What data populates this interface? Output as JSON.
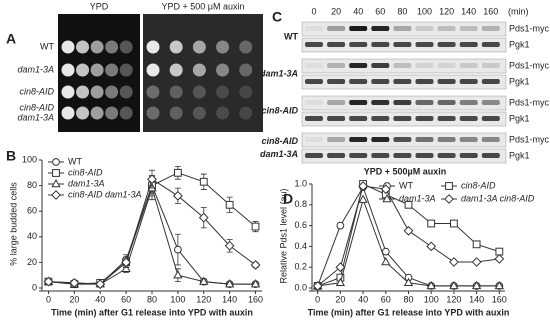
{
  "chart_data": [
    {
      "type": "line",
      "panel": "B",
      "xlabel": "Time (min) after G1 release into YPD with auxin",
      "ylabel": "% large budded cells",
      "x": [
        0,
        20,
        40,
        60,
        80,
        100,
        120,
        140,
        160
      ],
      "xlim": [
        -5,
        165
      ],
      "xticks": [
        0,
        20,
        40,
        60,
        80,
        100,
        120,
        140,
        160
      ],
      "ylim": [
        0,
        100
      ],
      "yticks": [
        0,
        20,
        40,
        60,
        80,
        100
      ],
      "legend": "upper left",
      "series": [
        {
          "name": "WT",
          "color": "#333333",
          "marker": "circle",
          "italic": false,
          "values": [
            5,
            4,
            3,
            22,
            80,
            30,
            5,
            3,
            3
          ],
          "errors": [
            2,
            1,
            1,
            4,
            8,
            12,
            2,
            1,
            1
          ]
        },
        {
          "name": "cin8-AID",
          "color": "#333333",
          "marker": "square",
          "italic": true,
          "values": [
            5,
            3,
            4,
            20,
            80,
            90,
            83,
            65,
            48
          ],
          "errors": [
            1,
            1,
            1,
            4,
            6,
            5,
            6,
            6,
            4
          ]
        },
        {
          "name": "dam1-3A",
          "color": "#333333",
          "marker": "triangle",
          "italic": true,
          "values": [
            5,
            3,
            3,
            15,
            78,
            10,
            5,
            3,
            3
          ],
          "errors": [
            1,
            1,
            1,
            3,
            9,
            5,
            2,
            1,
            1
          ]
        },
        {
          "name": "cin8-AID dam1-3A",
          "color": "#333333",
          "marker": "diamond",
          "italic": true,
          "values": [
            5,
            4,
            3,
            20,
            85,
            72,
            55,
            33,
            18
          ],
          "errors": [
            1,
            1,
            1,
            4,
            7,
            6,
            8,
            5,
            2
          ]
        }
      ]
    },
    {
      "type": "line",
      "panel": "D",
      "xlabel": "Time (min) after G1 release into YPD with auxin",
      "ylabel": "Relative Pds1 level (au)",
      "x": [
        0,
        20,
        40,
        60,
        80,
        100,
        120,
        140,
        160
      ],
      "xlim": [
        -5,
        165
      ],
      "xticks": [
        0,
        20,
        40,
        60,
        80,
        100,
        120,
        140,
        160
      ],
      "ylim": [
        0,
        1
      ],
      "yticks": [
        {
          "value": 0,
          "label": "0.0"
        },
        0.2,
        0.4,
        0.6,
        0.8,
        {
          "value": 1,
          "label": "1.0"
        }
      ],
      "legend": "upper right",
      "series": [
        {
          "name": "WT",
          "color": "#333333",
          "marker": "circle",
          "italic": false,
          "values": [
            0.02,
            0.6,
            0.97,
            0.35,
            0.1,
            0.02,
            0.02,
            0.02,
            0.02
          ]
        },
        {
          "name": "cin8-AID",
          "color": "#333333",
          "marker": "square",
          "italic": true,
          "values": [
            0.02,
            0.1,
            1.0,
            0.9,
            0.8,
            0.62,
            0.62,
            0.42,
            0.35
          ]
        },
        {
          "name": "dam1-3A",
          "color": "#333333",
          "marker": "triangle",
          "italic": true,
          "values": [
            0.02,
            0.05,
            0.85,
            0.25,
            0.05,
            0.02,
            0.02,
            0.02,
            0.02
          ]
        },
        {
          "name": "dam1-3A cin8-AID",
          "color": "#333333",
          "marker": "diamond",
          "italic": true,
          "values": [
            0.02,
            0.2,
            0.98,
            0.95,
            0.55,
            0.4,
            0.25,
            0.25,
            0.28
          ]
        }
      ]
    }
  ],
  "panel_a": {
    "label": "A",
    "headers": [
      "YPD",
      "YPD + 500 μM auxin"
    ],
    "rows": [
      [
        "WT"
      ],
      [
        "dam1-3A"
      ],
      [
        "cin8-AID"
      ],
      [
        "cin8-AID",
        "dam1-3A"
      ]
    ]
  },
  "panel_c": {
    "label": "C",
    "times": [
      0,
      20,
      40,
      60,
      80,
      100,
      120,
      140,
      160
    ],
    "time_unit": "(min)",
    "rows": [
      {
        "strain": [
          "WT"
        ],
        "bands": [
          "Pds1-myc",
          "Pgk1"
        ]
      },
      {
        "strain": [
          "dam1-3A"
        ],
        "bands": [
          "Pds1-myc",
          "Pgk1"
        ]
      },
      {
        "strain": [
          "cin8-AID"
        ],
        "bands": [
          "Pds1-myc",
          "Pgk1"
        ]
      },
      {
        "strain": [
          "cin8-AID",
          "dam1-3A"
        ],
        "bands": [
          "Pds1-myc",
          "Pgk1"
        ]
      }
    ],
    "footer": "YPD + 500µM auxin"
  }
}
